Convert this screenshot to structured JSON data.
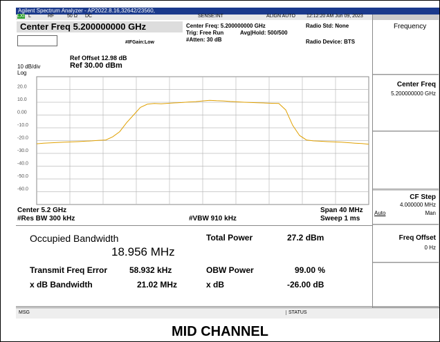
{
  "title_bar": "Agilent Spectrum Analyzer - AP2022.8.16,32642/23560,",
  "status_row": {
    "lxi": "LXI",
    "l": "L",
    "rf": "RF",
    "imp": "50 Ω",
    "dc": "DC",
    "sense": "SENSE:INT",
    "align": "ALIGN AUTO",
    "time": "12:12:20 AM Jun 09, 2023"
  },
  "header": {
    "center_freq": "Center Freq  5.200000000 GHz",
    "ifgain": "#IFGain:Low",
    "center_info": "Center Freq: 5.200000000 GHz",
    "trig": "Trig: Free Run",
    "atten": "#Atten: 30 dB",
    "avg": "Avg|Hold: 500/500",
    "radio_std": "Radio Std: None",
    "radio_device": "Radio Device: BTS"
  },
  "scale": {
    "ref_offset": "Ref Offset 12.98 dB",
    "div": "10 dB/div",
    "ref": "Ref 30.00 dBm",
    "log": "Log",
    "ylabels": [
      "20.0",
      "10.0",
      "0.00",
      "-10.0",
      "-20.0",
      "-30.0",
      "-40.0",
      "-50.0",
      "-60.0"
    ]
  },
  "trace": {
    "color": "#e0a000",
    "ylim": [
      -70,
      30
    ],
    "values": [
      -22.5,
      -22,
      -21.8,
      -21.5,
      -21.2,
      -21,
      -20.8,
      -20.5,
      -20.2,
      -19.8,
      -19.5,
      -17,
      -13,
      -6,
      0,
      6,
      8.5,
      9,
      8.8,
      9.2,
      9.5,
      9.8,
      10.2,
      10.5,
      11,
      11.5,
      11.2,
      11,
      10.6,
      10.3,
      10,
      9.8,
      9.6,
      9.4,
      9.2,
      9,
      4,
      -8,
      -16,
      -19.5,
      -20.2,
      -20.5,
      -20.8,
      -21,
      -21.2,
      -21.6,
      -22,
      -22.3,
      -22.8
    ]
  },
  "footer": {
    "center": "Center  5.2 GHz",
    "rbw": "#Res BW  300 kHz",
    "vbw": "#VBW  910 kHz",
    "span": "Span 40 MHz",
    "sweep": "Sweep  1 ms"
  },
  "measurement": {
    "obw_label": "Occupied Bandwidth",
    "obw_value": "18.956 MHz",
    "total_power_label": "Total Power",
    "total_power_value": "27.2 dBm",
    "tfe_label": "Transmit Freq Error",
    "tfe_value": "58.932 kHz",
    "obw_power_label": "OBW Power",
    "obw_power_value": "99.00 %",
    "xdb_bw_label": "x dB Bandwidth",
    "xdb_bw_value": "21.02 MHz",
    "xdb_label": "x dB",
    "xdb_value": "-26.00 dB"
  },
  "status_bar": {
    "msg": "MSG",
    "status": "STATUS"
  },
  "softkeys": {
    "menu": "Frequency",
    "center_freq": "Center Freq",
    "center_freq_value": "5.200000000 GHz",
    "cf_step": "CF Step",
    "cf_step_value": "4.000000 MHz",
    "auto": "Auto",
    "man": "Man",
    "freq_offset": "Freq Offset",
    "freq_offset_value": "0 Hz"
  },
  "caption": "MID CHANNEL"
}
